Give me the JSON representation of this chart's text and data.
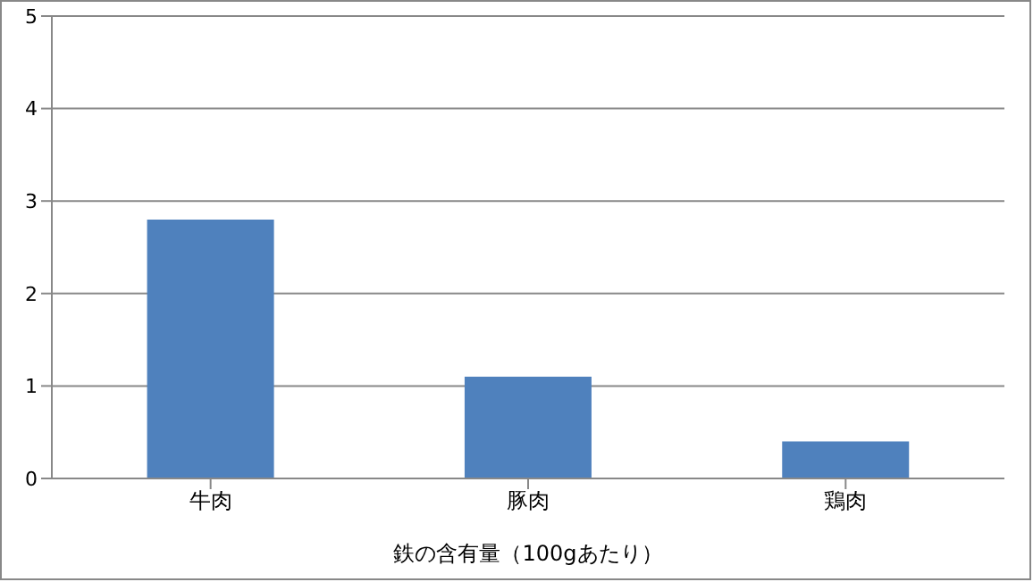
{
  "chart_data": {
    "type": "bar",
    "xlabel": "鉄の含有量（100gあたり）",
    "categories": [
      "牛肉",
      "豚肉",
      "鶏肉"
    ],
    "values": [
      2.8,
      1.1,
      0.4
    ],
    "color": "#4f81bd",
    "ylim": [
      0,
      5
    ],
    "yticks": [
      0,
      1,
      2,
      3,
      4,
      5
    ],
    "grid": "y"
  }
}
